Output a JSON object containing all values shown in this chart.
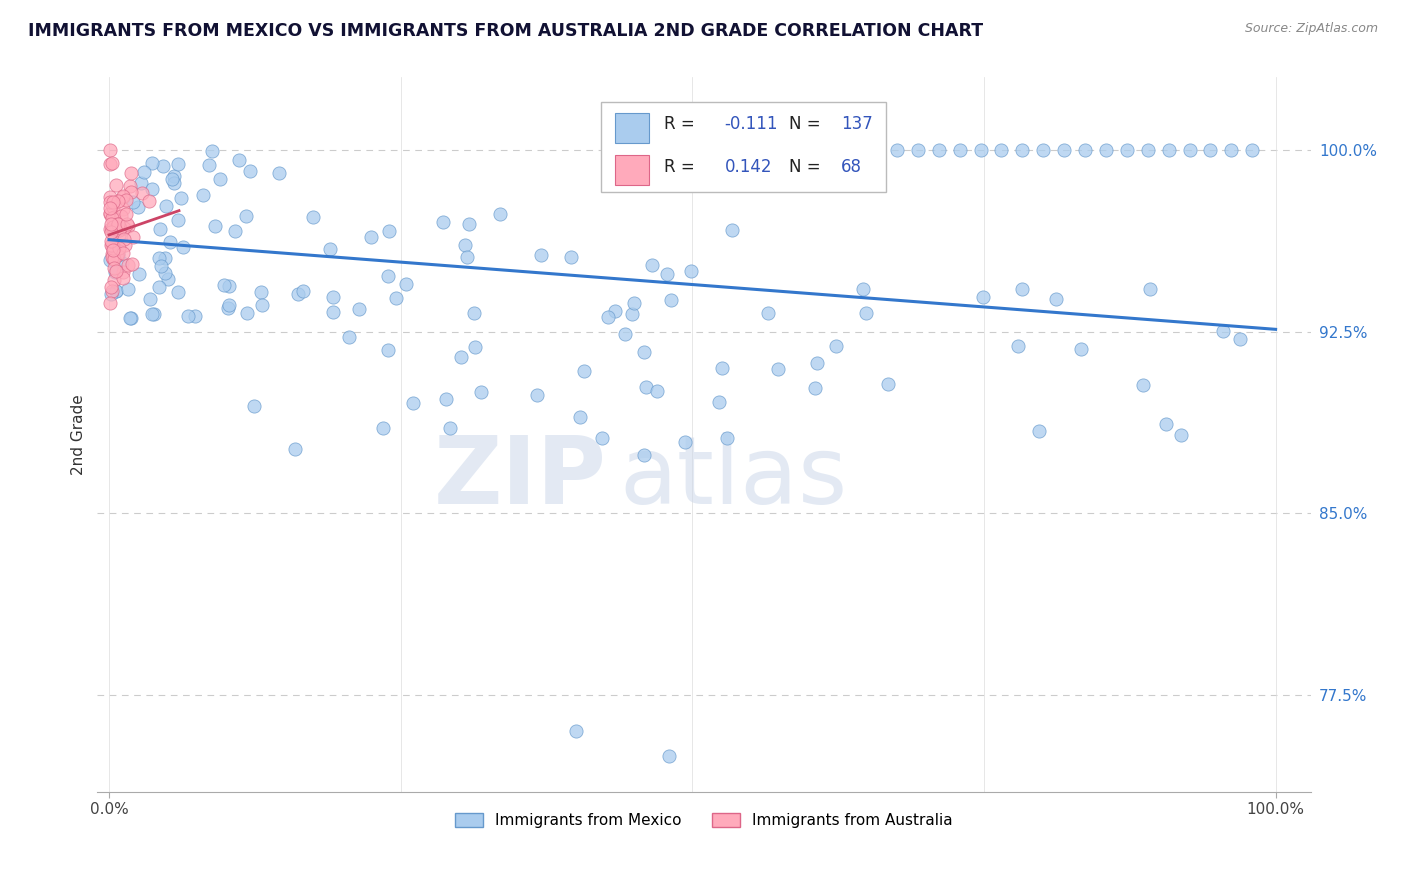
{
  "title": "IMMIGRANTS FROM MEXICO VS IMMIGRANTS FROM AUSTRALIA 2ND GRADE CORRELATION CHART",
  "source": "Source: ZipAtlas.com",
  "ylabel": "2nd Grade",
  "watermark_zip": "ZIP",
  "watermark_atlas": "atlas",
  "mexico_R": -0.111,
  "mexico_N": 137,
  "australia_R": 0.142,
  "australia_N": 68,
  "mexico_color": "#aaccee",
  "mexico_edge_color": "#6699cc",
  "australia_color": "#ffaabb",
  "australia_edge_color": "#dd6688",
  "mexico_line_color": "#3377cc",
  "australia_line_color": "#cc4466",
  "legend_text_color": "#3355bb",
  "ytick_color": "#3377cc",
  "title_color": "#111133",
  "source_color": "#888888",
  "ytick_labels": [
    "77.5%",
    "85.0%",
    "92.5%",
    "100.0%"
  ],
  "ytick_values": [
    0.775,
    0.85,
    0.925,
    1.0
  ],
  "xtick_labels": [
    "0.0%",
    "100.0%"
  ],
  "xtick_values": [
    0.0,
    1.0
  ],
  "ymin": 0.735,
  "ymax": 1.03,
  "xmin": -0.01,
  "xmax": 1.03,
  "mexico_trend_x": [
    0.0,
    1.0
  ],
  "mexico_trend_y": [
    0.963,
    0.926
  ],
  "australia_trend_x": [
    0.0,
    0.06
  ],
  "australia_trend_y": [
    0.965,
    0.975
  ]
}
